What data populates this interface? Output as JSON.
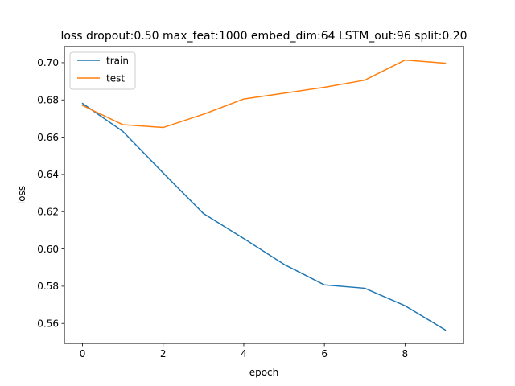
{
  "chart_data": {
    "type": "line",
    "title": "loss dropout:0.50 max_feat:1000 embed_dim:64 LSTM_out:96 split:0.20",
    "xlabel": "epoch",
    "ylabel": "loss",
    "x": [
      0,
      1,
      2,
      3,
      4,
      5,
      6,
      7,
      8,
      9
    ],
    "xlim": [
      -0.45,
      9.45
    ],
    "ylim": [
      0.5493,
      0.7086
    ],
    "xticks": [
      0,
      2,
      4,
      6,
      8
    ],
    "xtick_labels": [
      "0",
      "2",
      "4",
      "6",
      "8"
    ],
    "yticks": [
      0.56,
      0.58,
      0.6,
      0.62,
      0.64,
      0.66,
      0.68,
      0.7
    ],
    "ytick_labels": [
      "0.56",
      "0.58",
      "0.60",
      "0.62",
      "0.64",
      "0.66",
      "0.68",
      "0.70"
    ],
    "grid": false,
    "legend_position": "top-left",
    "series": [
      {
        "name": "train",
        "color": "#1f77b4",
        "values": [
          0.6781,
          0.6631,
          0.6408,
          0.619,
          0.6056,
          0.5917,
          0.5807,
          0.5789,
          0.5695,
          0.5565
        ]
      },
      {
        "name": "test",
        "color": "#ff7f0e",
        "values": [
          0.677,
          0.6667,
          0.6652,
          0.6723,
          0.6805,
          0.6836,
          0.6868,
          0.6906,
          0.7014,
          0.6997
        ]
      }
    ]
  }
}
